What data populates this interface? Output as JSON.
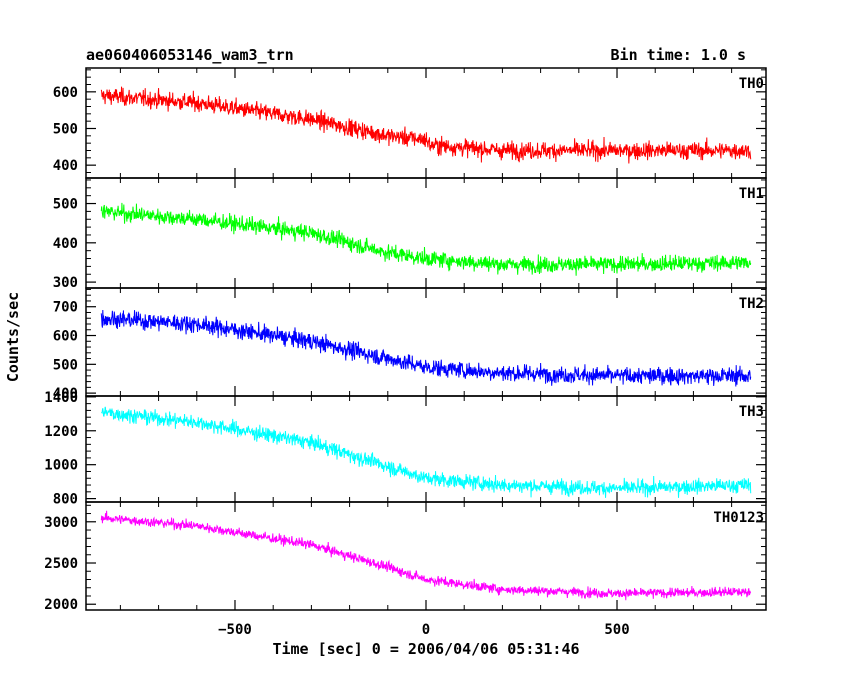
{
  "header": {
    "title": "ae060406053146_wam3_trn",
    "bin_time": "Bin time: 1.0 s"
  },
  "chart_data": {
    "type": "line",
    "layout": "stacked-panels",
    "xlabel": "Time [sec] 0 = 2006/04/06 05:31:46",
    "ylabel": "Counts/sec",
    "xlim": [
      -890,
      890
    ],
    "x_data_range": [
      -850,
      850
    ],
    "xticks": [
      -500,
      0,
      500
    ],
    "grid": false,
    "panels": [
      {
        "label": "TH0",
        "color": "#ff0000",
        "ylim": [
          365,
          665
        ],
        "yticks": [
          400,
          500,
          600
        ],
        "trend": {
          "x": [
            -850,
            -600,
            -300,
            -100,
            0,
            10,
            200,
            500,
            850
          ],
          "y": [
            590,
            570,
            525,
            480,
            470,
            455,
            440,
            440,
            440
          ]
        },
        "noise": 30
      },
      {
        "label": "TH1",
        "color": "#00ff00",
        "ylim": [
          285,
          565
        ],
        "yticks": [
          300,
          400,
          500
        ],
        "trend": {
          "x": [
            -850,
            -600,
            -300,
            -100,
            0,
            200,
            500,
            850
          ],
          "y": [
            480,
            460,
            425,
            375,
            360,
            345,
            345,
            350
          ]
        },
        "noise": 26
      },
      {
        "label": "TH2",
        "color": "#0000ff",
        "ylim": [
          390,
          765
        ],
        "yticks": [
          400,
          500,
          600,
          700
        ],
        "trend": {
          "x": [
            -850,
            -600,
            -300,
            -100,
            0,
            200,
            500,
            850
          ],
          "y": [
            660,
            640,
            580,
            520,
            490,
            470,
            460,
            460
          ]
        },
        "noise": 38
      },
      {
        "label": "TH3",
        "color": "#00ffff",
        "ylim": [
          780,
          1405
        ],
        "yticks": [
          800,
          1000,
          1200,
          1400
        ],
        "trend": {
          "x": [
            -850,
            -600,
            -300,
            -100,
            0,
            200,
            500,
            850
          ],
          "y": [
            1310,
            1250,
            1130,
            990,
            920,
            880,
            860,
            880
          ]
        },
        "noise": 55
      },
      {
        "label": "TH0123",
        "color": "#ff00ff",
        "ylim": [
          1930,
          3240
        ],
        "yticks": [
          2000,
          2500,
          3000
        ],
        "trend": {
          "x": [
            -850,
            -600,
            -300,
            -100,
            0,
            200,
            500,
            850
          ],
          "y": [
            3050,
            2950,
            2720,
            2450,
            2300,
            2180,
            2130,
            2150
          ]
        },
        "noise": 75
      }
    ]
  }
}
